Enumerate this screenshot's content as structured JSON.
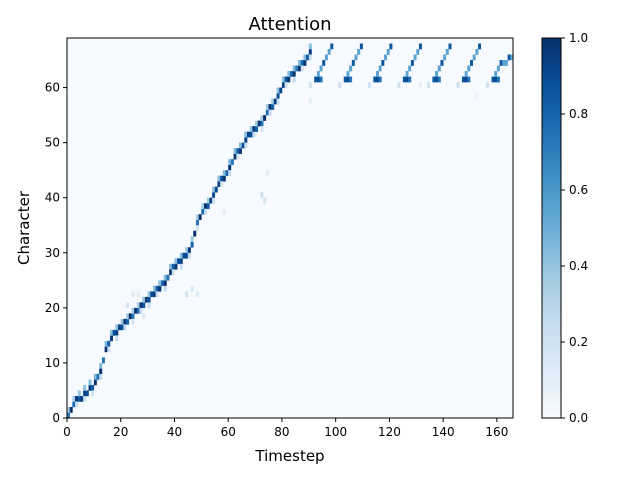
{
  "chart_data": {
    "type": "heatmap",
    "title": "Attention",
    "xlabel": "Timestep",
    "ylabel": "Character",
    "xlim": [
      0,
      166
    ],
    "ylim": [
      0,
      69
    ],
    "x_ticks": [
      0,
      20,
      40,
      60,
      80,
      100,
      120,
      140,
      160
    ],
    "y_ticks": [
      0,
      10,
      20,
      30,
      40,
      50,
      60
    ],
    "colorbar": {
      "range": [
        0.0,
        1.0
      ],
      "ticks": [
        "0.0",
        "0.2",
        "0.4",
        "0.6",
        "0.8",
        "1.0"
      ],
      "colormap": "Blues",
      "low_color": "#f7fbff",
      "high_color": "#08306b"
    },
    "alignment_path": [
      [
        0,
        0
      ],
      [
        1,
        1
      ],
      [
        2,
        2
      ],
      [
        3,
        3
      ],
      [
        5,
        3
      ],
      [
        7,
        4
      ],
      [
        9,
        5
      ],
      [
        10,
        6
      ],
      [
        12,
        8
      ],
      [
        13,
        10
      ],
      [
        14,
        12
      ],
      [
        15,
        13
      ],
      [
        16,
        14
      ],
      [
        18,
        15
      ],
      [
        20,
        16
      ],
      [
        22,
        17
      ],
      [
        24,
        18
      ],
      [
        26,
        19
      ],
      [
        28,
        20
      ],
      [
        30,
        21
      ],
      [
        32,
        22
      ],
      [
        34,
        23
      ],
      [
        36,
        24
      ],
      [
        38,
        26
      ],
      [
        40,
        27
      ],
      [
        42,
        28
      ],
      [
        44,
        29
      ],
      [
        46,
        31
      ],
      [
        47,
        33
      ],
      [
        48,
        35
      ],
      [
        50,
        37
      ],
      [
        52,
        38
      ],
      [
        54,
        40
      ],
      [
        56,
        42
      ],
      [
        58,
        43
      ],
      [
        60,
        45
      ],
      [
        62,
        47
      ],
      [
        64,
        48
      ],
      [
        66,
        50
      ],
      [
        68,
        51
      ],
      [
        70,
        52
      ],
      [
        72,
        53
      ],
      [
        74,
        55
      ],
      [
        76,
        56
      ],
      [
        78,
        58
      ],
      [
        80,
        60
      ],
      [
        82,
        61
      ],
      [
        84,
        62
      ],
      [
        86,
        63
      ],
      [
        88,
        64
      ],
      [
        90,
        66
      ]
    ],
    "loop_segments": [
      [
        [
          92,
          61
        ],
        [
          94,
          63
        ],
        [
          96,
          65
        ],
        [
          98,
          67
        ]
      ],
      [
        [
          103,
          61
        ],
        [
          105,
          63
        ],
        [
          107,
          65
        ],
        [
          109,
          67
        ]
      ],
      [
        [
          114,
          61
        ],
        [
          116,
          63
        ],
        [
          118,
          65
        ],
        [
          120,
          67
        ]
      ],
      [
        [
          125,
          61
        ],
        [
          127,
          63
        ],
        [
          129,
          65
        ],
        [
          131,
          67
        ]
      ],
      [
        [
          136,
          61
        ],
        [
          138,
          63
        ],
        [
          140,
          65
        ],
        [
          142,
          67
        ]
      ],
      [
        [
          147,
          61
        ],
        [
          149,
          63
        ],
        [
          151,
          65
        ],
        [
          153,
          67
        ]
      ],
      [
        [
          158,
          61
        ],
        [
          160,
          63
        ],
        [
          162,
          64
        ],
        [
          165,
          65
        ]
      ]
    ]
  }
}
